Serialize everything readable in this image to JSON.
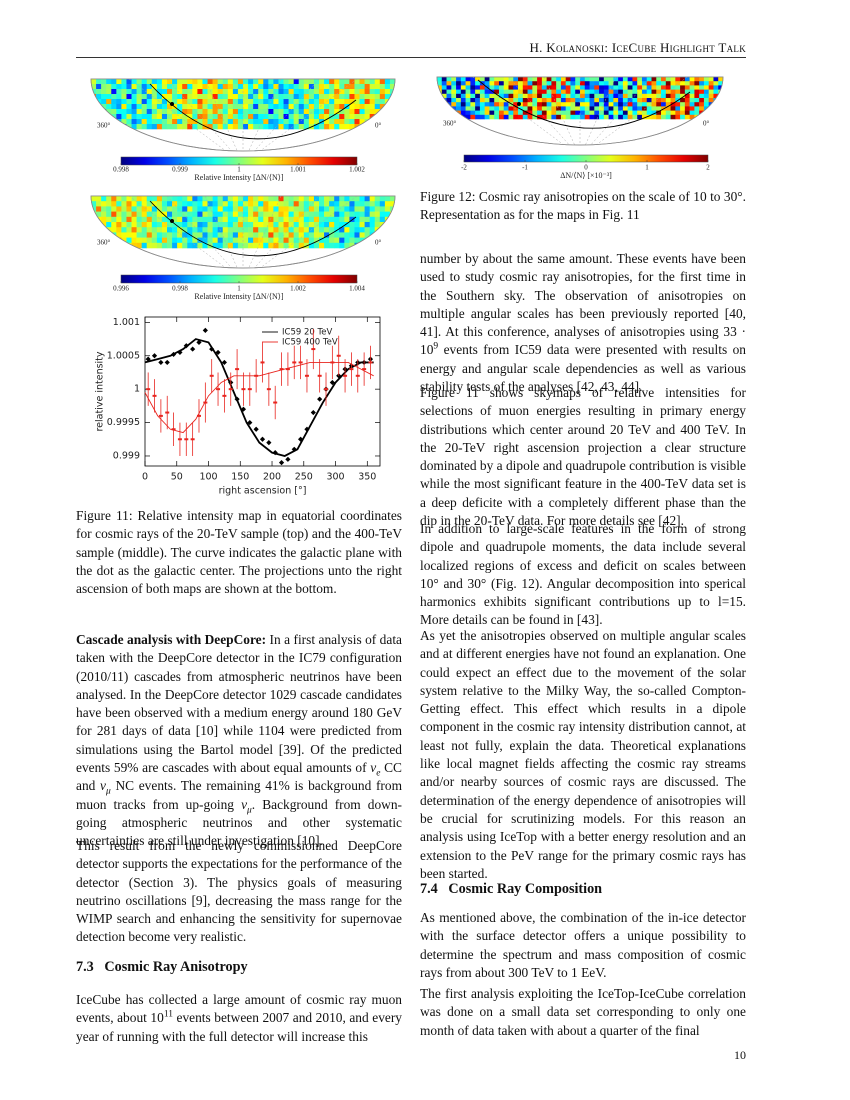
{
  "header": "H. Kolanoski: IceCube Highlight Talk",
  "page_number": "10",
  "sky_maps": [
    {
      "left_label": "360°",
      "right_label": "0°",
      "colorbar_ticks": [
        0.998,
        0.999,
        1,
        1.001,
        1.002
      ],
      "colorbar_label": "Relative Intensity [ΔN/⟨N⟩]"
    },
    {
      "left_label": "360°",
      "right_label": "0°",
      "colorbar_ticks": [
        0.996,
        0.998,
        1,
        1.002,
        1.004
      ],
      "colorbar_label": "Relative Intensity [ΔN/⟨N⟩]"
    },
    {
      "left_label": "360°",
      "right_label": "0°",
      "colorbar_ticks": [
        -2,
        -1,
        0,
        1,
        2
      ],
      "colorbar_label": "ΔN/⟨N⟩ [×10⁻³]"
    }
  ],
  "chart_data": {
    "type": "scatter",
    "x_label": "right ascension [°]",
    "y_label": "relative intensity",
    "xlim": [
      0,
      370
    ],
    "ylim": [
      0.99885,
      1.00108
    ],
    "xticks": [
      0,
      50,
      100,
      150,
      200,
      250,
      300,
      350
    ],
    "yticks": [
      0.999,
      0.9995,
      1,
      1.0005,
      1.001
    ],
    "legend": "top-center",
    "series": [
      {
        "name": "IC59 20 TeV",
        "color": "#000000",
        "x": [
          5,
          15,
          25,
          35,
          45,
          55,
          65,
          75,
          85,
          95,
          105,
          115,
          125,
          135,
          145,
          155,
          165,
          175,
          185,
          195,
          205,
          215,
          225,
          235,
          245,
          255,
          265,
          275,
          285,
          295,
          305,
          315,
          325,
          335,
          345,
          355
        ],
        "values": [
          1.00045,
          1.0005,
          1.0004,
          1.0004,
          1.00052,
          1.00055,
          1.00065,
          1.0006,
          1.0007,
          1.00088,
          1.0006,
          1.00055,
          1.0004,
          1.0001,
          0.99985,
          0.9997,
          0.9995,
          0.9994,
          0.99925,
          0.9992,
          0.99905,
          0.9989,
          0.99895,
          0.9991,
          0.99925,
          0.9994,
          0.99965,
          0.99985,
          1.0,
          1.0001,
          1.0002,
          1.0003,
          1.00035,
          1.0004,
          1.0004,
          1.00045
        ],
        "curve": {
          "x": [
            0,
            20,
            40,
            60,
            80,
            100,
            120,
            140,
            160,
            180,
            200,
            220,
            240,
            260,
            280,
            300,
            320,
            340,
            360
          ],
          "values": [
            1.0004,
            1.00045,
            1.0005,
            1.0006,
            1.00075,
            1.0007,
            1.0004,
            0.99995,
            0.9995,
            0.9992,
            0.99905,
            0.999,
            0.9991,
            0.99945,
            0.9998,
            1.0001,
            1.0003,
            1.0004,
            1.0004
          ]
        }
      },
      {
        "name": "IC59 400 TeV",
        "color": "#e8251f",
        "x": [
          5,
          15,
          25,
          35,
          45,
          55,
          65,
          75,
          85,
          95,
          105,
          115,
          125,
          135,
          145,
          155,
          165,
          175,
          185,
          195,
          205,
          215,
          225,
          235,
          245,
          255,
          265,
          275,
          285,
          295,
          305,
          315,
          325,
          335,
          345,
          355
        ],
        "values": [
          1.0,
          0.9999,
          0.9996,
          0.99965,
          0.9994,
          0.99925,
          0.99925,
          0.99925,
          0.9996,
          0.9998,
          1.0002,
          1.0,
          0.9999,
          1.0,
          1.0003,
          1.0,
          1.0,
          1.0002,
          1.0004,
          1.0,
          0.9998,
          1.0003,
          1.0003,
          1.0004,
          1.0004,
          1.0002,
          1.0006,
          1.0002,
          1.0,
          1.0004,
          1.0005,
          1.0002,
          1.0003,
          1.0002,
          1.0003,
          1.0004
        ],
        "errors": [
          0.00025,
          0.00025,
          0.00025,
          0.00025,
          0.00025,
          0.00025,
          0.00025,
          0.00025,
          0.00025,
          0.0003,
          0.00025,
          0.00025,
          0.00025,
          0.00025,
          0.0003,
          0.00025,
          0.00025,
          0.00025,
          0.0003,
          0.00025,
          0.00025,
          0.00025,
          0.00025,
          0.00025,
          0.00025,
          0.00025,
          0.0003,
          0.00025,
          0.00025,
          0.00025,
          0.0003,
          0.00025,
          0.00025,
          0.00025,
          0.00025,
          0.00025
        ],
        "curve": {
          "x": [
            0,
            20,
            40,
            60,
            80,
            100,
            120,
            140,
            160,
            180,
            200,
            220,
            240,
            260,
            280,
            300,
            320,
            340,
            360
          ],
          "values": [
            0.99995,
            0.9996,
            0.9994,
            0.99935,
            0.99955,
            0.9999,
            1.0001,
            1.0002,
            1.0002,
            1.0002,
            1.00025,
            1.0003,
            1.00035,
            1.0004,
            1.0004,
            1.0004,
            1.0004,
            1.0003,
            1.0002
          ]
        }
      }
    ]
  },
  "captions": {
    "figure_11": "Figure 11: Relative intensity map in equatorial coordinates for cosmic rays of the 20-TeV sample (top) and the 400-TeV sample (middle). The curve indicates the galactic plane with the dot as the galactic center. The projections unto the right ascension of both maps are shown at the bottom.",
    "figure_12": "Figure 12: Cosmic ray anisotropies on the scale of 10 to 30°. Representation as for the maps in Fig. 11"
  },
  "left_column": [
    {
      "runs": [
        {
          "b": "Cascade analysis with DeepCore:"
        },
        "  In a first analysis of data taken with the DeepCore detector in the IC79 configuration (2010/11) cascades from atmospheric neutrinos have been analysed. In the DeepCore detector 1029 cascade candidates have been observed with a medium energy around 180 GeV for 281 days of data [10] while 1104 were predicted from simulations using the Bartol model [39]. Of the predicted events 59% are cascades with about equal amounts of ",
        {
          "i": "ν"
        },
        {
          "sub": "e"
        },
        " CC and ",
        {
          "i": "ν"
        },
        {
          "sub": "μ"
        },
        " NC events. The remaining 41% is background from muon tracks from up-going ",
        {
          "i": "ν"
        },
        {
          "sub": "μ"
        },
        ". Background from down-going atmospheric neutrinos and other systematic uncertainties are still under investigation [10]."
      ]
    },
    {
      "runs": [
        "This result from the newly commissionned DeepCore detector supports the expectations for the performance of the detector (Section 3). The physics goals of measuring neutrino oscillations [9], decreasing the mass range for the WIMP search and enhancing the sensitivity for supernovae detection become very realistic."
      ]
    },
    {
      "heading": "7.3   Cosmic Ray Anisotropy"
    },
    {
      "runs": [
        "IceCube has collected a large amount of cosmic ray muon events, about 10",
        {
          "sup": "11"
        },
        " events between 2007 and 2010, and every year of running with the full detector will increase this"
      ]
    }
  ],
  "right_column": [
    {
      "runs": [
        "number by about the same amount. These events have been used to study cosmic ray anisotropies, for the first time in the Southern sky. The observation of anisotropies on multiple angular scales has been previously reported [40, 41]. At this conference, analyses of anisotropies using 33 · 10",
        {
          "sup": "9"
        },
        " events from IC59 data were presented with results on energy and angular scale dependencies as well as various stability tests of the analyses [42, 43, 44]."
      ]
    },
    {
      "runs": [
        "Figure 11 shows skymaps of relative intensities for selections of muon energies resulting in primary energy distributions which center around 20 TeV and 400 TeV. In the 20-TeV right ascension projection a clear structure dominated by a dipole and quadrupole contribution is visible while the most significant feature in the 400-TeV data set is a deep deficite with a completely different phase than the dip in the 20-TeV data. For more details see [42]."
      ]
    },
    {
      "runs": [
        "In addition to large-scale features in the form of strong dipole and quadrupole moments, the data include several localized regions of excess and deficit on scales between 10° and 30° (Fig. 12). Angular decomposition into sperical harmonics exhibits significant contributions up to l=15. More details can be found in [43]."
      ]
    },
    {
      "runs": [
        "As yet the anisotropies observed on multiple angular scales and at different energies have not found an explanation. One could expect an effect due to the movement of the solar system relative to the Milky Way, the so-called Compton-Getting effect. This effect which results in a dipole component in the cosmic ray intensity distribution cannot, at least not fully, explain the data. Theoretical explanations like local magnet fields affecting the cosmic ray streams and/or nearby sources of cosmic rays are discussed. The determination of the energy dependence of anisotropies will be crucial for scrutinizing models. For this reason an analysis using IceTop with a better energy resolution and an extension to the PeV range for the primary cosmic rays has been started."
      ]
    },
    {
      "heading": "7.4   Cosmic Ray Composition"
    },
    {
      "runs": [
        "As mentioned above, the combination of the in-ice detector with the surface detector offers a unique possibility to determine the spectrum and mass composition of cosmic rays from about 300 TeV to 1 EeV."
      ]
    },
    {
      "runs": [
        "The first analysis exploiting the IceTop-IceCube correlation was done on a small data set corresponding to only one month of data taken with about a quarter of the final"
      ]
    }
  ]
}
